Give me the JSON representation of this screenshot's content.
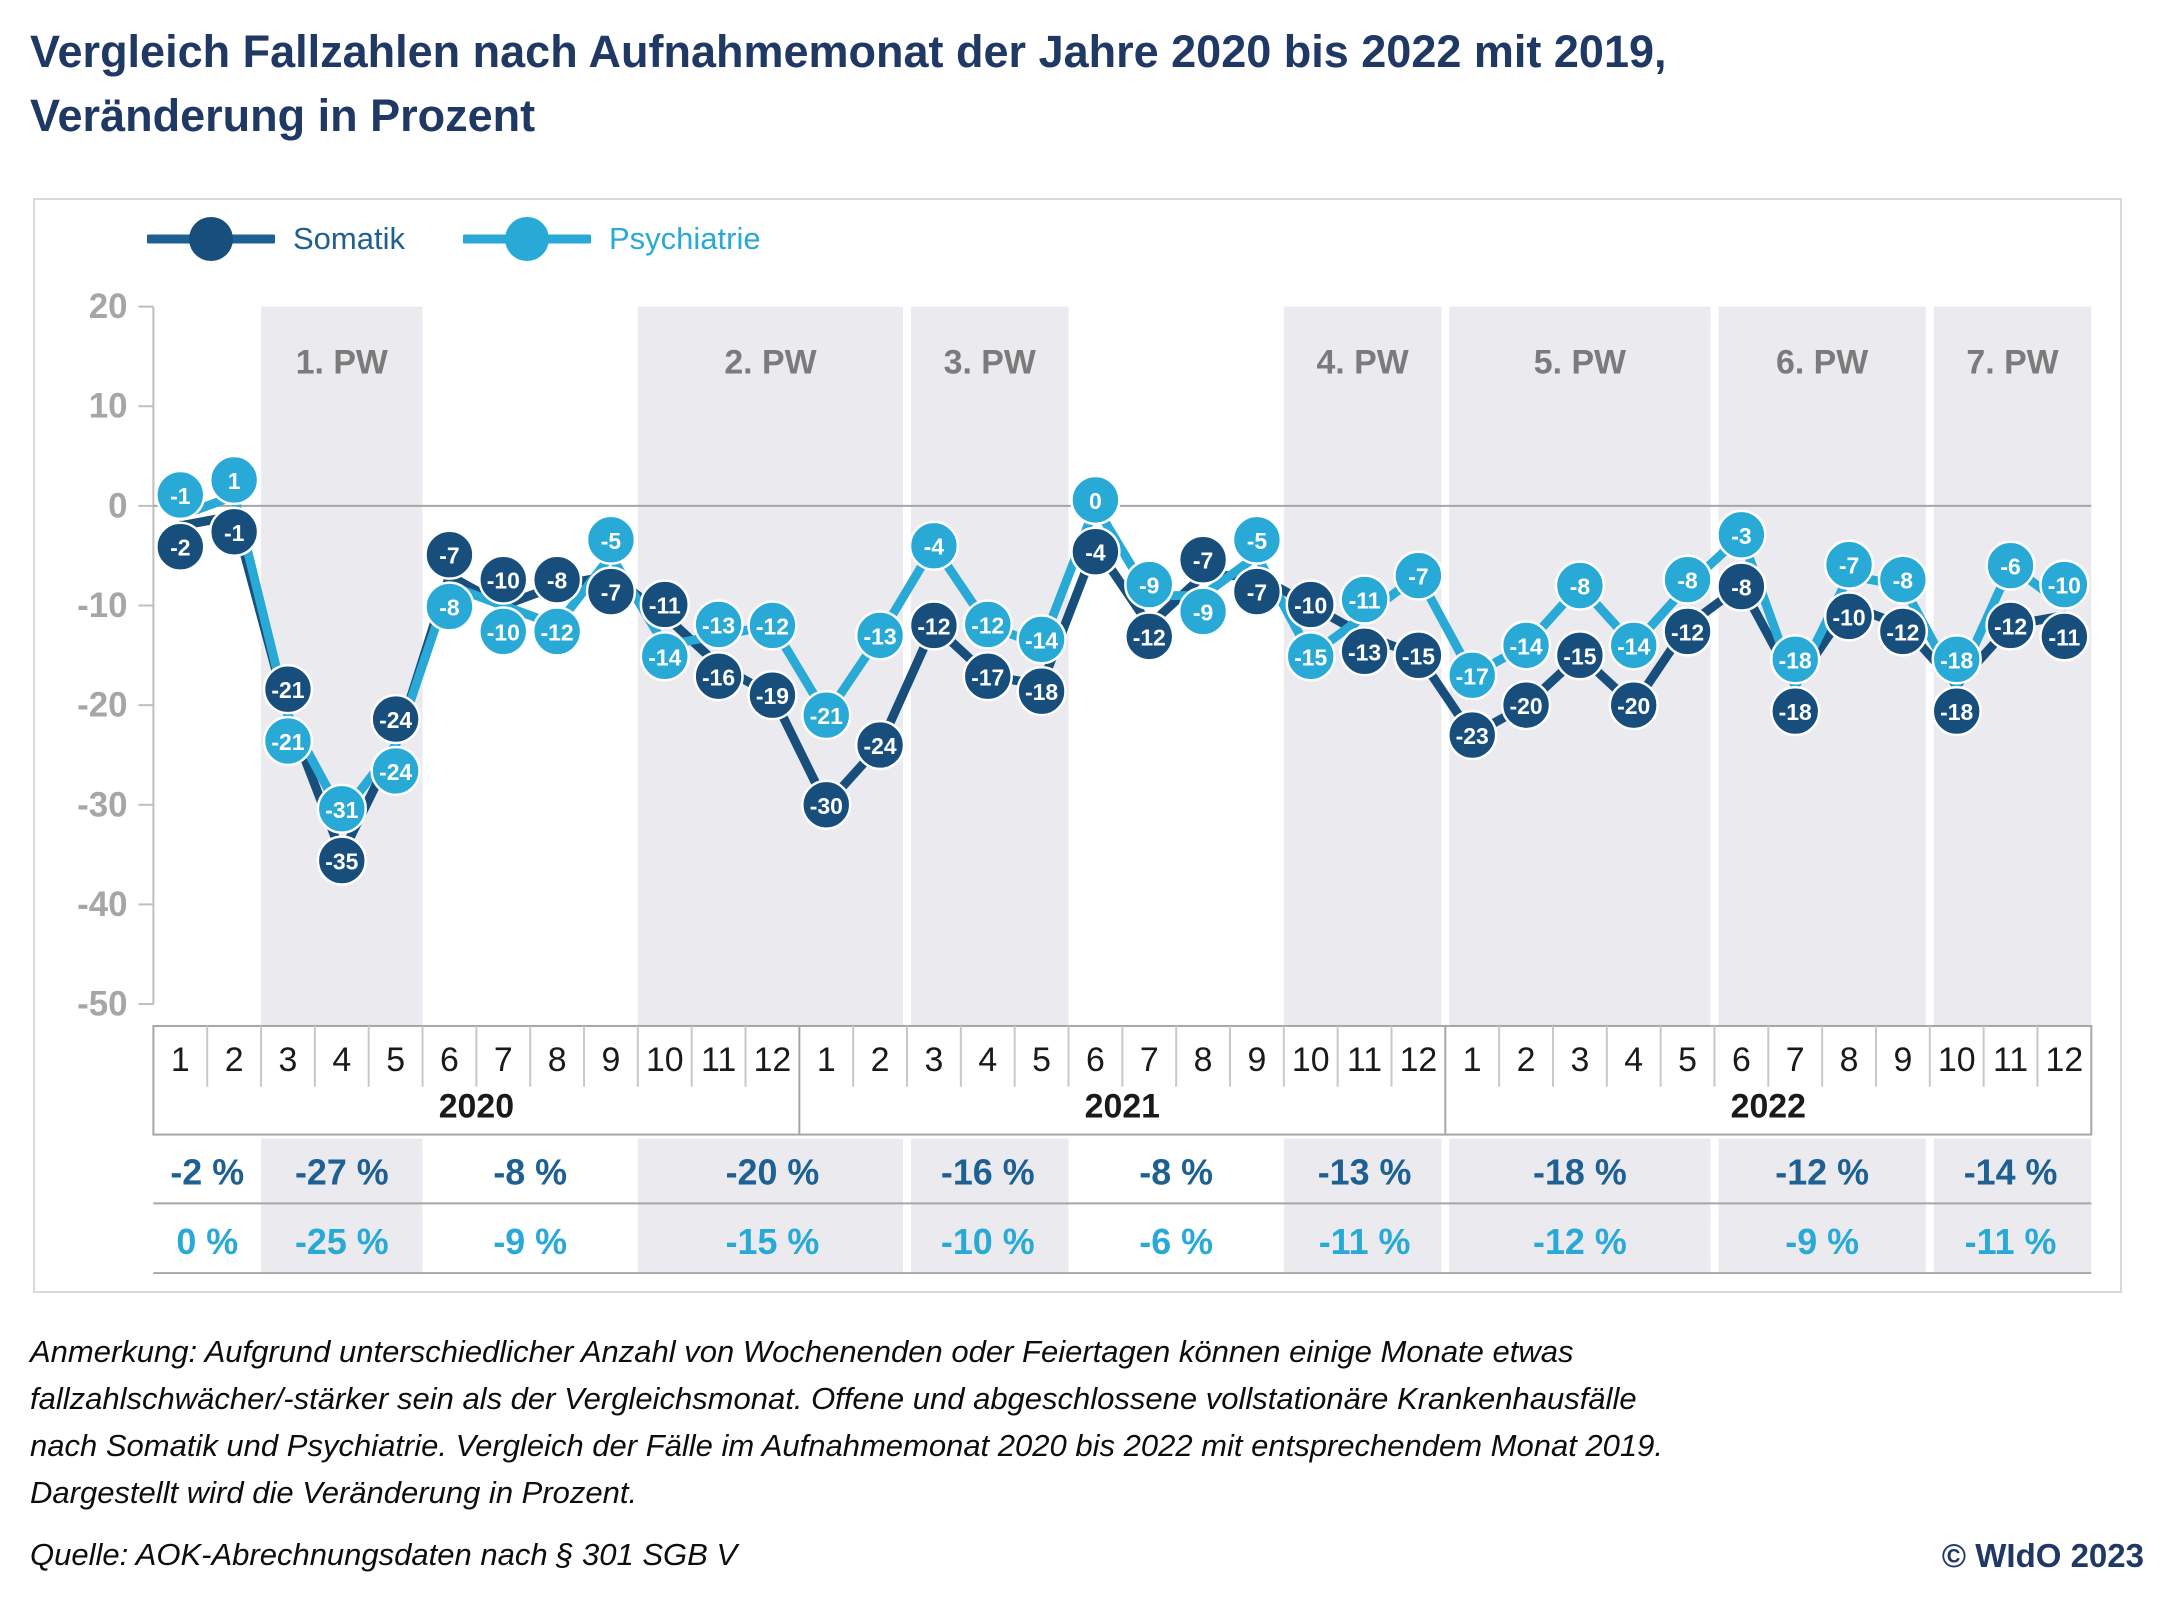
{
  "title_lines": [
    "Vergleich Fallzahlen nach Aufnahmemonat der Jahre 2020 bis 2022 mit 2019,",
    "Veränderung in Prozent"
  ],
  "legend": {
    "somatik": "Somatik",
    "psychiatrie": "Psychiatrie"
  },
  "note_lines": [
    "Anmerkung: Aufgrund unterschiedlicher Anzahl von Wochenenden oder Feiertagen können einige Monate etwas",
    "fallzahlschwächer/-stärker sein als der Vergleichsmonat. Offene und abgeschlossene vollstationäre Krankenhausfälle",
    "nach Somatik und Psychiatrie. Vergleich der Fälle im Aufnahmemonat 2020 bis 2022 mit entsprechendem Monat 2019.",
    "Dargestellt wird die Veränderung in Prozent."
  ],
  "source": "Quelle: AOK-Abrechnungsdaten nach § 301 SGB V",
  "copyright": "© WIdO 2023",
  "colors": {
    "somatik": "#174e7b",
    "somatik_text": "#1d6091",
    "psychiatrie": "#29a9d6",
    "title": "#1f3864",
    "band": "#eaeaef",
    "pw_label": "#7b7b7b",
    "axis_gray": "#a6a6a6",
    "tick_line": "#bfbfbf",
    "box_border": "#a6a6a6",
    "month_sep": "#c8c8c8",
    "month_text": "#1a1a1a"
  },
  "chart_data": {
    "type": "line",
    "title": "Vergleich Fallzahlen nach Aufnahmemonat der Jahre 2020 bis 2022 mit 2019, Veränderung in Prozent",
    "ylabel": "Veränderung in Prozent",
    "ylim": [
      -50,
      20
    ],
    "yticks": [
      20,
      10,
      0,
      -10,
      -20,
      -30,
      -40,
      -50
    ],
    "grid": "zero-line-only",
    "legend_position": "top-left",
    "months": [
      1,
      2,
      3,
      4,
      5,
      6,
      7,
      8,
      9,
      10,
      11,
      12
    ],
    "year_labels": [
      "2020",
      "2021",
      "2022"
    ],
    "series": [
      {
        "name": "Somatik",
        "values": [
          -2,
          -1,
          -21,
          -35,
          -24,
          -7,
          -10,
          -8,
          -7,
          -11,
          -16,
          -19,
          -30,
          -24,
          -12,
          -17,
          -18,
          -4,
          -12,
          -7,
          -7,
          -10,
          -13,
          -15,
          -23,
          -20,
          -15,
          -20,
          -12,
          -8,
          -18,
          -10,
          -12,
          -18,
          -12,
          -11
        ]
      },
      {
        "name": "Psychiatrie",
        "values": [
          -1,
          1,
          -21,
          -31,
          -24,
          -8,
          -10,
          -12,
          -5,
          -14,
          -13,
          -12,
          -21,
          -13,
          -4,
          -12,
          -14,
          0,
          -9,
          -9,
          -5,
          -15,
          -11,
          -7,
          -17,
          -14,
          -8,
          -14,
          -8,
          -3,
          -18,
          -7,
          -8,
          -18,
          -6,
          -10
        ]
      }
    ],
    "equal_value_label_top": {
      "2": "som",
      "4": "som",
      "6": "som",
      "30": "psy",
      "33": "psy"
    },
    "waves": [
      {
        "label": "1. PW",
        "from": 2,
        "to": 4
      },
      {
        "label": "2. PW",
        "from": 9,
        "to": 13
      },
      {
        "label": "3. PW",
        "from": 14,
        "to": 16
      },
      {
        "label": "4. PW",
        "from": 21,
        "to": 23
      },
      {
        "label": "5. PW",
        "from": 24,
        "to": 28
      },
      {
        "label": "6. PW",
        "from": 29,
        "to": 32
      },
      {
        "label": "7. PW",
        "from": 33,
        "to": 35
      }
    ],
    "summary_rows": {
      "row1_series": "Somatik",
      "row2_series": "Psychiatrie"
    },
    "summary_segments": [
      {
        "from": 0,
        "to": 1,
        "shaded": false,
        "somatik": "-2 %",
        "psychiatrie": "0 %"
      },
      {
        "from": 2,
        "to": 4,
        "shaded": true,
        "somatik": "-27 %",
        "psychiatrie": "-25 %"
      },
      {
        "from": 5,
        "to": 8,
        "shaded": false,
        "somatik": "-8 %",
        "psychiatrie": "-9 %"
      },
      {
        "from": 9,
        "to": 13,
        "shaded": true,
        "somatik": "-20 %",
        "psychiatrie": "-15 %"
      },
      {
        "from": 14,
        "to": 16,
        "shaded": true,
        "somatik": "-16 %",
        "psychiatrie": "-10 %"
      },
      {
        "from": 17,
        "to": 20,
        "shaded": false,
        "somatik": "-8 %",
        "psychiatrie": "-6 %"
      },
      {
        "from": 21,
        "to": 23,
        "shaded": true,
        "somatik": "-13 %",
        "psychiatrie": "-11 %"
      },
      {
        "from": 24,
        "to": 28,
        "shaded": true,
        "somatik": "-18 %",
        "psychiatrie": "-12 %"
      },
      {
        "from": 29,
        "to": 32,
        "shaded": true,
        "somatik": "-12 %",
        "psychiatrie": "-9 %"
      },
      {
        "from": 33,
        "to": 35,
        "shaded": true,
        "somatik": "-14 %",
        "psychiatrie": "-11 %"
      }
    ]
  }
}
